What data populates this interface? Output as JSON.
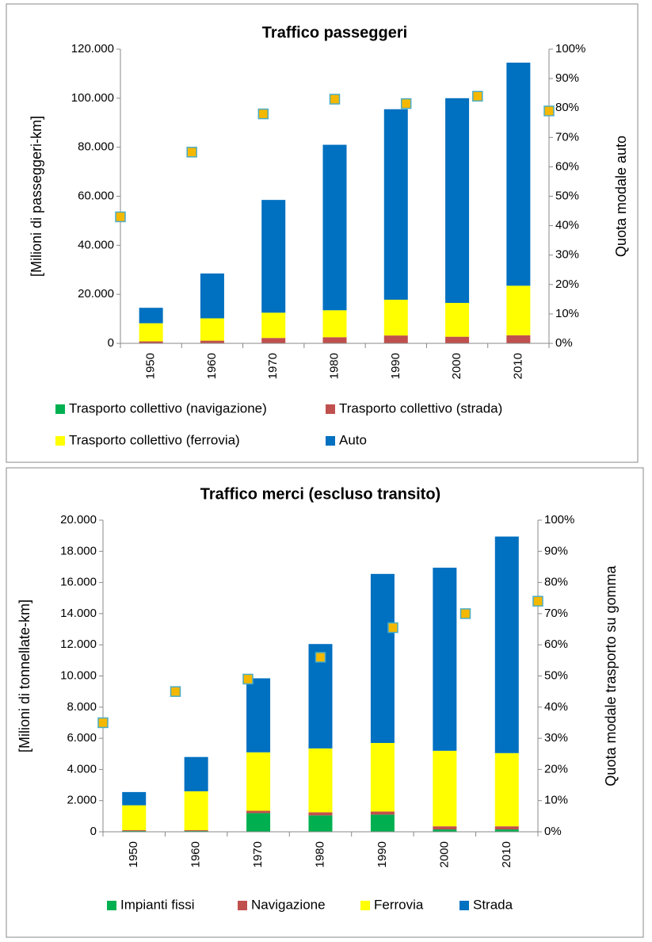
{
  "chart_data": [
    {
      "type": "bar",
      "stacked": true,
      "title": "Traffico passeggeri",
      "y_label": "[Milioni di passeggeri-km]",
      "y2_label": "Quota modale auto",
      "categories": [
        "1950",
        "1960",
        "1970",
        "1980",
        "1990",
        "2000",
        "2010"
      ],
      "series": [
        {
          "name": "Trasporto collettivo (navigazione)",
          "color": "#00b050",
          "values": [
            100,
            100,
            100,
            100,
            100,
            100,
            100
          ]
        },
        {
          "name": "Trasporto collettivo (strada)",
          "color": "#c0504d",
          "values": [
            700,
            1000,
            2100,
            2400,
            3100,
            2600,
            3200
          ]
        },
        {
          "name": "Trasporto collettivo (ferrovia)",
          "color": "#ffff00",
          "values": [
            7400,
            9100,
            10300,
            11000,
            14600,
            13800,
            20200
          ]
        },
        {
          "name": "Auto",
          "color": "#0070c0",
          "values": [
            6300,
            18300,
            46000,
            67500,
            77700,
            83500,
            91000
          ]
        },
        {
          "color": "#f5b800",
          "axis": "y2",
          "values": [
            43,
            65,
            78,
            83,
            81.5,
            84,
            79
          ]
        }
      ],
      "ylim": [
        0,
        120000
      ],
      "yticks": [
        0,
        {
          "value": 20000,
          "label": "20.000"
        },
        {
          "value": 40000,
          "label": "40.000"
        },
        {
          "value": 60000,
          "label": "60.000"
        },
        {
          "value": 80000,
          "label": "80.000"
        },
        {
          "value": 100000,
          "label": "100.000"
        },
        {
          "value": 120000,
          "label": "120.000"
        }
      ],
      "y2lim": [
        0,
        100
      ],
      "y2ticks": [
        {
          "value": 0,
          "label": "0%"
        },
        {
          "value": 10,
          "label": "10%"
        },
        {
          "value": 20,
          "label": "20%"
        },
        {
          "value": 30,
          "label": "30%"
        },
        {
          "value": 40,
          "label": "40%"
        },
        {
          "value": 50,
          "label": "50%"
        },
        {
          "value": 60,
          "label": "60%"
        },
        {
          "value": 70,
          "label": "70%"
        },
        {
          "value": 80,
          "label": "80%"
        },
        {
          "value": 90,
          "label": "90%"
        },
        {
          "value": 100,
          "label": "100%"
        }
      ],
      "legend": "bottom"
    },
    {
      "type": "bar",
      "stacked": true,
      "title": "Traffico merci (escluso transito)",
      "y_label": "[Milioni di tonnellate-km]",
      "y2_label": "Quota modale trasporto su gomma",
      "categories": [
        "1950",
        "1960",
        "1970",
        "1980",
        "1990",
        "2000",
        "2010"
      ],
      "series": [
        {
          "name": "Impianti fissi",
          "color": "#00b050",
          "values": [
            50,
            50,
            1200,
            1050,
            1100,
            150,
            150
          ]
        },
        {
          "name": "Navigazione",
          "color": "#c0504d",
          "values": [
            50,
            50,
            150,
            200,
            200,
            200,
            200
          ]
        },
        {
          "name": "Ferrovia",
          "color": "#ffff00",
          "values": [
            1600,
            2500,
            3750,
            4100,
            4400,
            4850,
            4700
          ]
        },
        {
          "name": "Strada",
          "color": "#0070c0",
          "values": [
            850,
            2200,
            4750,
            6700,
            10850,
            11750,
            13900
          ]
        },
        {
          "color": "#f5b800",
          "axis": "y2",
          "values": [
            35,
            45,
            49,
            56,
            65.5,
            70,
            74
          ]
        }
      ],
      "ylim": [
        0,
        20000
      ],
      "yticks": [
        0,
        {
          "value": 2000,
          "label": "2.000"
        },
        {
          "value": 4000,
          "label": "4.000"
        },
        {
          "value": 6000,
          "label": "6.000"
        },
        {
          "value": 8000,
          "label": "8.000"
        },
        {
          "value": 10000,
          "label": "10.000"
        },
        {
          "value": 12000,
          "label": "12.000"
        },
        {
          "value": 14000,
          "label": "14.000"
        },
        {
          "value": 16000,
          "label": "16.000"
        },
        {
          "value": 18000,
          "label": "18.000"
        },
        {
          "value": 20000,
          "label": "20.000"
        }
      ],
      "y2lim": [
        0,
        100
      ],
      "y2ticks": [
        {
          "value": 0,
          "label": "0%"
        },
        {
          "value": 10,
          "label": "10%"
        },
        {
          "value": 20,
          "label": "20%"
        },
        {
          "value": 30,
          "label": "30%"
        },
        {
          "value": 40,
          "label": "40%"
        },
        {
          "value": 50,
          "label": "50%"
        },
        {
          "value": 60,
          "label": "60%"
        },
        {
          "value": 70,
          "label": "70%"
        },
        {
          "value": 80,
          "label": "80%"
        },
        {
          "value": 90,
          "label": "90%"
        },
        {
          "value": 100,
          "label": "100%"
        }
      ],
      "legend": "bottom"
    }
  ]
}
